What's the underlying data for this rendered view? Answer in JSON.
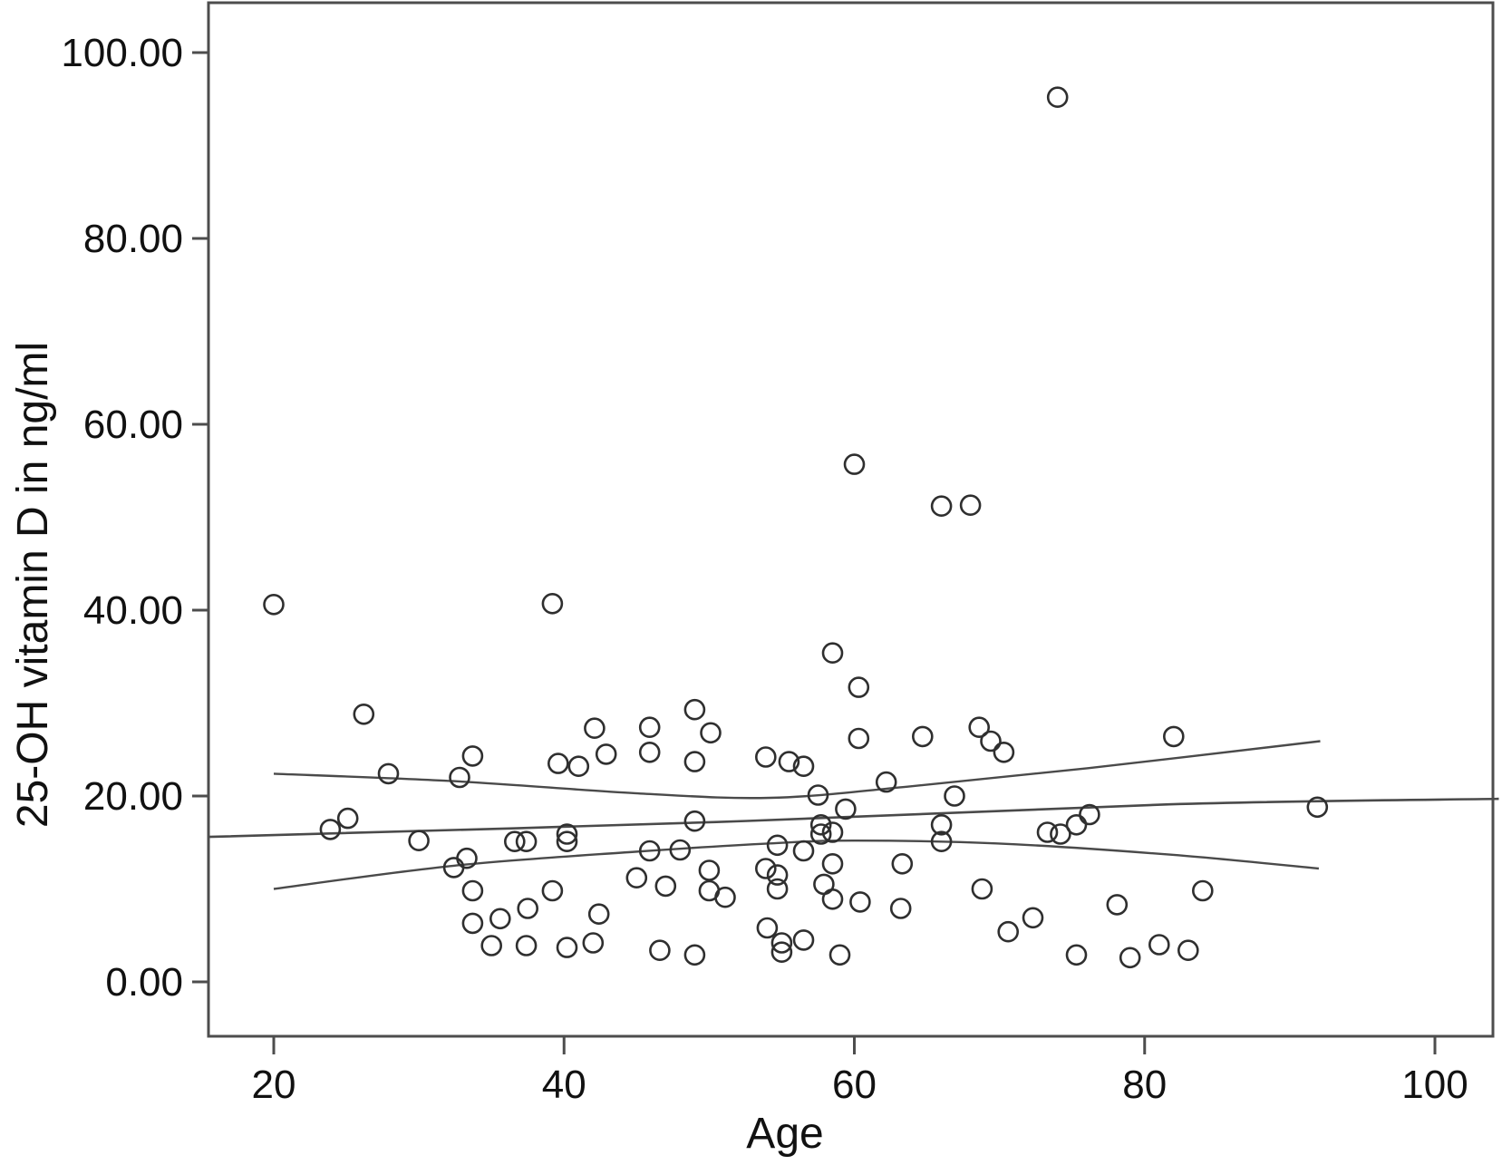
{
  "figure": {
    "background": "#ffffff",
    "frame_color": "#4d4d4d",
    "marker_color": "#2f2f2f",
    "line_color": "#4a4a4a",
    "text_color": "#111111"
  },
  "chart_data": {
    "type": "scatter",
    "title": "",
    "xlabel": "Age",
    "ylabel": "25-OH vitamin D in ng/ml",
    "xlim": [
      15.5,
      104.5
    ],
    "ylim": [
      -5.9,
      105.4
    ],
    "grid": false,
    "legend": "none",
    "x_ticks": {
      "values": [
        20,
        40,
        60,
        80,
        100
      ],
      "labels": [
        "20",
        "40",
        "60",
        "80",
        "100"
      ]
    },
    "y_ticks": {
      "values": [
        0,
        20,
        40,
        60,
        80,
        100
      ],
      "labels": [
        "0.00",
        "20.00",
        "40.00",
        "60.00",
        "80.00",
        "100.00"
      ]
    },
    "marker": {
      "shape": "open-circle",
      "radius_px": 10.5
    },
    "points": [
      [
        74,
        95.2
      ],
      [
        60,
        55.7
      ],
      [
        66,
        51.2
      ],
      [
        68,
        51.3
      ],
      [
        20,
        40.6
      ],
      [
        39.2,
        40.7
      ],
      [
        58.5,
        35.4
      ],
      [
        60.3,
        31.7
      ],
      [
        26.2,
        28.8
      ],
      [
        49,
        29.3
      ],
      [
        42.1,
        27.3
      ],
      [
        45.9,
        27.4
      ],
      [
        50.1,
        26.8
      ],
      [
        42.9,
        24.5
      ],
      [
        45.9,
        24.7
      ],
      [
        41,
        23.2
      ],
      [
        49,
        23.7
      ],
      [
        27.9,
        22.4
      ],
      [
        33.7,
        24.3
      ],
      [
        32.8,
        22.0
      ],
      [
        39.6,
        23.5
      ],
      [
        53.9,
        24.2
      ],
      [
        55.5,
        23.7
      ],
      [
        56.5,
        23.2
      ],
      [
        62.2,
        21.5
      ],
      [
        64.7,
        26.4
      ],
      [
        60.3,
        26.2
      ],
      [
        68.6,
        27.4
      ],
      [
        69.4,
        25.9
      ],
      [
        70.3,
        24.7
      ],
      [
        82,
        26.4
      ],
      [
        66.9,
        20.0
      ],
      [
        57.5,
        20.1
      ],
      [
        23.9,
        16.4
      ],
      [
        25.1,
        17.6
      ],
      [
        30,
        15.2
      ],
      [
        36.6,
        15.1
      ],
      [
        37.4,
        15.1
      ],
      [
        40.2,
        15.9
      ],
      [
        40.2,
        15.1
      ],
      [
        45.9,
        14.1
      ],
      [
        49,
        17.3
      ],
      [
        48,
        14.2
      ],
      [
        59.4,
        18.6
      ],
      [
        56.5,
        14.1
      ],
      [
        57.7,
        16.9
      ],
      [
        57.7,
        15.9
      ],
      [
        58.5,
        16.1
      ],
      [
        66,
        16.9
      ],
      [
        66,
        15.1
      ],
      [
        73.3,
        16.1
      ],
      [
        74.2,
        15.9
      ],
      [
        75.3,
        16.9
      ],
      [
        76.2,
        18.0
      ],
      [
        91.9,
        18.8
      ],
      [
        58.5,
        12.7
      ],
      [
        63.3,
        12.7
      ],
      [
        54.7,
        14.7
      ],
      [
        32.4,
        12.3
      ],
      [
        33.3,
        13.3
      ],
      [
        33.7,
        9.8
      ],
      [
        39.2,
        9.8
      ],
      [
        37.5,
        7.9
      ],
      [
        35.6,
        6.8
      ],
      [
        33.7,
        6.3
      ],
      [
        45,
        11.2
      ],
      [
        47,
        10.3
      ],
      [
        50,
        12.0
      ],
      [
        50,
        9.8
      ],
      [
        51.1,
        9.1
      ],
      [
        53.9,
        12.2
      ],
      [
        54.7,
        11.5
      ],
      [
        54.7,
        10.0
      ],
      [
        57.9,
        10.5
      ],
      [
        58.5,
        8.9
      ],
      [
        60.4,
        8.6
      ],
      [
        63.2,
        7.9
      ],
      [
        68.8,
        10.0
      ],
      [
        72.3,
        6.9
      ],
      [
        70.6,
        5.4
      ],
      [
        78.1,
        8.3
      ],
      [
        84,
        9.8
      ],
      [
        42.4,
        7.3
      ],
      [
        35,
        3.9
      ],
      [
        37.4,
        3.9
      ],
      [
        40.2,
        3.7
      ],
      [
        42,
        4.2
      ],
      [
        46.6,
        3.4
      ],
      [
        49,
        2.9
      ],
      [
        54,
        5.8
      ],
      [
        55,
        4.2
      ],
      [
        55,
        3.2
      ],
      [
        56.5,
        4.5
      ],
      [
        59,
        2.9
      ],
      [
        75.3,
        2.9
      ],
      [
        79,
        2.6
      ],
      [
        81,
        4.0
      ],
      [
        83,
        3.4
      ]
    ],
    "fit_lines": {
      "middle": [
        [
          15.5,
          15.6
        ],
        [
          50.5,
          17.2
        ],
        [
          81.7,
          19.1
        ],
        [
          104.4,
          19.7
        ]
      ],
      "upper_ci": [
        [
          20,
          22.4
        ],
        [
          32.4,
          21.6
        ],
        [
          44.9,
          20.3
        ],
        [
          54.2,
          19.8
        ],
        [
          63.6,
          21.0
        ],
        [
          76.1,
          23.0
        ],
        [
          92.1,
          25.9
        ]
      ],
      "lower_ci": [
        [
          20,
          10.0
        ],
        [
          32.4,
          12.5
        ],
        [
          44.9,
          14.0
        ],
        [
          54.2,
          14.9
        ],
        [
          60,
          15.2
        ],
        [
          69.8,
          14.9
        ],
        [
          81.7,
          13.7
        ],
        [
          92,
          12.2
        ]
      ]
    }
  }
}
